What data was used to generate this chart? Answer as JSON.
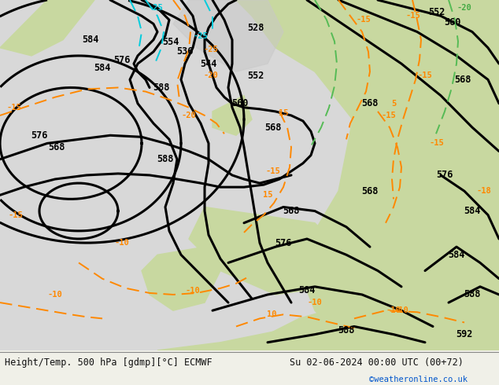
{
  "title_left": "Height/Temp. 500 hPa [gdmp][°C] ECMWF",
  "title_right": "Su 02-06-2024 00:00 UTC (00+72)",
  "credit": "©weatheronline.co.uk",
  "bg_color": "#f0f0e8",
  "land_color_green": "#c8d8a0",
  "land_color_gray": "#c8c8c8",
  "sea_color": "#e8e8e8",
  "contour_color_black": "#000000",
  "contour_color_orange": "#ff8800",
  "contour_color_cyan": "#00ccdd",
  "contour_color_green": "#44aa44",
  "label_color_black": "#000000",
  "label_color_orange": "#ff8800",
  "label_color_cyan": "#00ccdd",
  "credit_color": "#0055cc",
  "figsize": [
    6.34,
    4.9
  ],
  "dpi": 100,
  "bottom_bar_height": 0.08,
  "bottom_bar_color": "#ffffff"
}
